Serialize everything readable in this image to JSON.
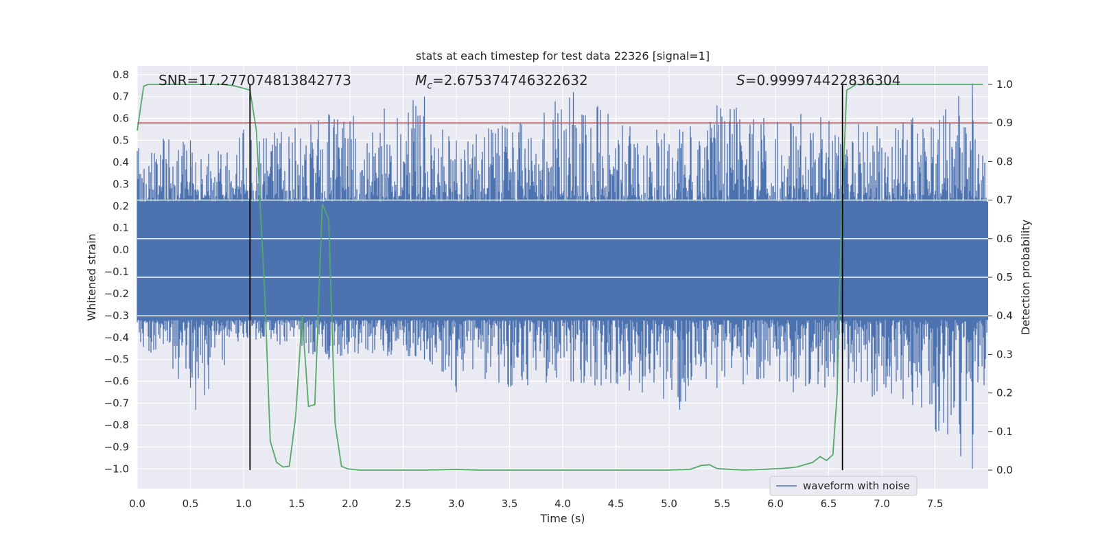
{
  "chart_data": {
    "type": "line",
    "title": "stats at each timestep for test data 22326 [signal=1]",
    "xlabel": "Time (s)",
    "ylabel": "Whitened strain",
    "y2label": "Detection probability",
    "xlim": [
      0,
      8
    ],
    "ylim": [
      -1.09,
      0.84
    ],
    "y2lim": [
      -0.048,
      1.048
    ],
    "xticks": [
      0.0,
      0.5,
      1.0,
      1.5,
      2.0,
      2.5,
      3.0,
      3.5,
      4.0,
      4.5,
      5.0,
      5.5,
      6.0,
      6.5,
      7.0,
      7.5
    ],
    "yticks": [
      0.8,
      0.7,
      0.6,
      0.5,
      0.4,
      0.3,
      0.2,
      0.1,
      0.0,
      -0.1,
      -0.2,
      -0.3,
      -0.4,
      -0.5,
      -0.6,
      -0.7,
      -0.8,
      -0.9,
      -1.0
    ],
    "y2ticks": [
      1.0,
      0.9,
      0.8,
      0.7,
      0.6,
      0.5,
      0.4,
      0.3,
      0.2,
      0.1,
      0.0
    ],
    "grid": true,
    "legend": {
      "position": "lower-right",
      "entries": [
        "waveform with noise"
      ]
    },
    "annotations": [
      {
        "text": "SNR=17.277074813842773",
        "x": 0.18,
        "y": 0.78
      },
      {
        "prefix": "M",
        "sub": "c",
        "text": "=2.675374746322632",
        "x": 2.6,
        "y": 0.78
      },
      {
        "prefix": "S",
        "text": "=0.9999744228363​04",
        "x": 5.6,
        "y": 0.78
      }
    ],
    "threshold": {
      "value": 0.9,
      "axis": "y2",
      "color": "#c44e52"
    },
    "vlines": [
      1.06,
      6.63
    ],
    "series": [
      {
        "name": "waveform with noise",
        "axis": "y",
        "color": "#4c72b0",
        "envelope_points": [
          {
            "x": 0.0,
            "max": 0.52,
            "min": -0.45
          },
          {
            "x": 0.5,
            "max": 0.5,
            "min": -0.63
          },
          {
            "x": 0.55,
            "max": 0.4,
            "min": -0.73
          },
          {
            "x": 1.0,
            "max": 0.55,
            "min": -0.4
          },
          {
            "x": 1.8,
            "max": 0.62,
            "min": -0.5
          },
          {
            "x": 2.7,
            "max": 0.7,
            "min": -0.5
          },
          {
            "x": 3.0,
            "max": 0.5,
            "min": -0.65
          },
          {
            "x": 4.1,
            "max": 0.72,
            "min": -0.6
          },
          {
            "x": 5.1,
            "max": 0.55,
            "min": -0.73
          },
          {
            "x": 5.45,
            "max": 0.66,
            "min": -0.63
          },
          {
            "x": 7.2,
            "max": 0.58,
            "min": -0.68
          },
          {
            "x": 7.85,
            "max": 0.76,
            "min": -1.0
          },
          {
            "x": 8.0,
            "max": 0.5,
            "min": -0.5
          }
        ]
      },
      {
        "name": "",
        "axis": "y2",
        "color": "#55a868",
        "x": [
          0.0,
          0.06,
          0.1,
          0.2,
          0.4,
          0.6,
          0.8,
          0.9,
          1.0,
          1.06,
          1.12,
          1.2,
          1.25,
          1.31,
          1.37,
          1.43,
          1.49,
          1.55,
          1.61,
          1.67,
          1.74,
          1.8,
          1.86,
          1.92,
          1.98,
          2.1,
          2.3,
          2.5,
          2.7,
          3.0,
          3.2,
          3.5,
          4.0,
          4.5,
          5.0,
          5.2,
          5.3,
          5.38,
          5.45,
          5.5,
          5.7,
          5.9,
          6.1,
          6.2,
          6.35,
          6.42,
          6.48,
          6.54,
          6.58,
          6.6,
          6.63,
          6.67,
          6.7,
          6.76,
          6.85,
          7.0,
          7.5,
          7.95
        ],
        "y": [
          0.88,
          0.995,
          1.0,
          1.0,
          1.0,
          1.0,
          1.0,
          0.997,
          0.99,
          0.985,
          0.88,
          0.45,
          0.075,
          0.02,
          0.008,
          0.01,
          0.14,
          0.4,
          0.165,
          0.17,
          0.69,
          0.65,
          0.12,
          0.01,
          0.003,
          0.0,
          0.0,
          0.0,
          0.0,
          0.002,
          0.0,
          0.0,
          0.0,
          0.0,
          0.0,
          0.002,
          0.012,
          0.014,
          0.004,
          0.003,
          0.0,
          0.002,
          0.005,
          0.008,
          0.02,
          0.035,
          0.025,
          0.04,
          0.2,
          0.45,
          0.72,
          0.985,
          0.99,
          1.0,
          1.0,
          1.0,
          1.0,
          1.0
        ]
      }
    ]
  }
}
